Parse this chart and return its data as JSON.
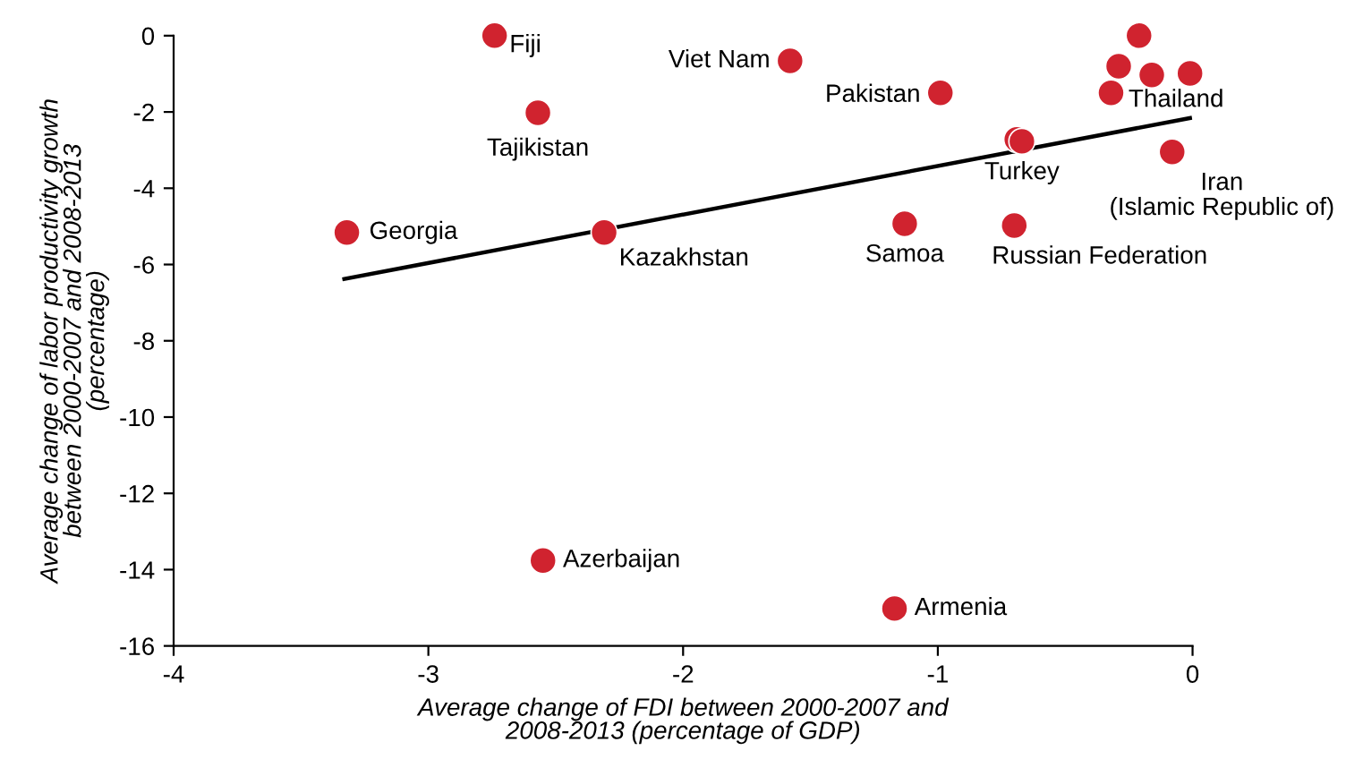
{
  "chart_data": {
    "type": "scatter",
    "xlabel": "Average change of FDI between 2000-2007 and\n2008-2013 (percentage of GDP)",
    "ylabel": "Average change of labor productivity growth\nbetween 2000-2007 and 2008-2013\n(percentage)",
    "series": [
      {
        "marker": "circle",
        "color": "#d0232f",
        "x": [
          -2.74,
          -2.57,
          -1.58,
          -3.32,
          -2.31,
          -0.99,
          -0.69,
          -0.67,
          -0.21,
          -0.29,
          -0.16,
          -0.01,
          -0.32,
          -0.08,
          -1.13,
          -0.7,
          -2.55,
          -1.17
        ],
        "values": [
          0,
          -2.02,
          -0.66,
          -5.16,
          -5.16,
          -1.5,
          -2.72,
          -2.77,
          0,
          -0.8,
          -1.03,
          -0.99,
          -1.5,
          -3.05,
          -4.93,
          -4.98,
          -13.76,
          -15.02
        ]
      },
      {
        "type": "line",
        "color": "#000000",
        "x": [
          -3.33,
          -0.01
        ],
        "values": [
          -6.38,
          -2.16
        ]
      }
    ],
    "annotations": [
      {
        "text": "Fiji",
        "x": -2.74,
        "y": 0
      },
      {
        "text": "Tajikistan",
        "x": -2.57,
        "y": -2.02
      },
      {
        "text": "Viet Nam",
        "x": -1.58,
        "y": -0.66
      },
      {
        "text": "Georgia",
        "x": -3.32,
        "y": -5.16
      },
      {
        "text": "Kazakhstan",
        "x": -2.31,
        "y": -5.16
      },
      {
        "text": "Pakistan",
        "x": -0.99,
        "y": -1.5
      },
      {
        "text": "Turkey",
        "x": -0.67,
        "y": -2.77
      },
      {
        "text": "Thailand",
        "x": -0.32,
        "y": -1.5
      },
      {
        "text": "Iran\n(Islamic Republic of)",
        "x": -0.08,
        "y": -3.05
      },
      {
        "text": "Samoa",
        "x": -1.13,
        "y": -4.93
      },
      {
        "text": "Russian Federation",
        "x": -0.7,
        "y": -4.98
      },
      {
        "text": "Azerbaijan",
        "x": -2.55,
        "y": -13.76
      },
      {
        "text": "Armenia",
        "x": -1.17,
        "y": -15.02
      }
    ],
    "xlim": [
      -4,
      0
    ],
    "xticks": [
      -4,
      -3,
      -2,
      -1,
      0
    ],
    "ylim": [
      -16,
      0
    ],
    "yticks": [
      0,
      -2,
      -4,
      -6,
      -8,
      -10,
      -12,
      -14,
      -16
    ],
    "grid": false,
    "legend": false,
    "line_style": "solid"
  }
}
